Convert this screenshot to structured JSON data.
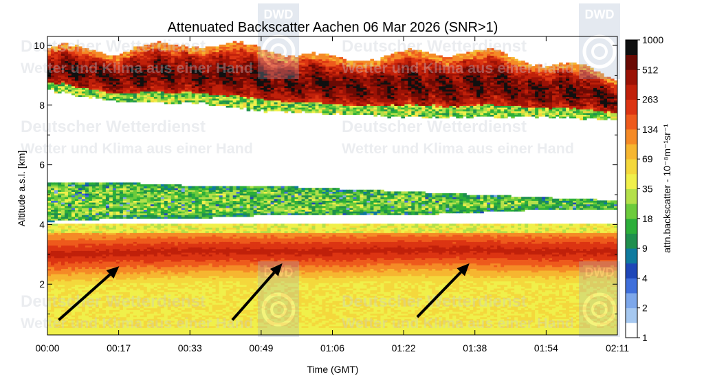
{
  "watermark": {
    "org": "Deutscher Wetterdienst",
    "slogan": "Wetter und Klima aus einer Hand",
    "logo": "DWD",
    "logo_icon": "dwd-spiral-icon"
  },
  "chart_data": {
    "type": "heatmap",
    "title": "Attenuated Backscatter Aachen 06 Mar 2026 (SNR>1)",
    "xlabel": "Time (GMT)",
    "ylabel": "Altitude a.s.l. [km]",
    "x_ticks": [
      "00:00",
      "00:17",
      "00:33",
      "00:49",
      "01:06",
      "01:22",
      "01:38",
      "01:54",
      "02:11"
    ],
    "xlim_minutes": [
      0,
      131
    ],
    "ylim": [
      0.3,
      10.3
    ],
    "y_ticks": [
      2,
      4,
      6,
      8,
      10
    ],
    "colorbar": {
      "label": "attn.backscatter - 10⁻⁸m⁻¹sr⁻¹",
      "ticks": [
        "1",
        "2",
        "4",
        "9",
        "18",
        "35",
        "69",
        "134",
        "263",
        "512",
        "1000"
      ],
      "colors": [
        "#ffffff",
        "#a6c8f0",
        "#7da7ea",
        "#3f6fdb",
        "#1f47b8",
        "#0f7a9e",
        "#1f8f4e",
        "#2cae3a",
        "#6ccb3c",
        "#b4e04a",
        "#f0f04a",
        "#f4d83c",
        "#f6b630",
        "#f58a26",
        "#ee5a1c",
        "#dc3412",
        "#c0200a",
        "#9b1206",
        "#6a0a04",
        "#101010"
      ]
    },
    "layers": [
      {
        "label": "cirrus cloud",
        "base_km": [
          8.5,
          8.1,
          8.1,
          7.8,
          7.7,
          7.6,
          7.6,
          7.6,
          7.5
        ],
        "top_km": [
          9.9,
          9.8,
          10.1,
          9.9,
          9.5,
          9.7,
          9.8,
          9.4,
          9.0
        ]
      },
      {
        "label": "mid-level signal",
        "base_km": [
          4.1,
          4.2,
          4.2,
          4.3,
          4.3,
          4.3,
          4.4,
          4.5,
          4.5
        ],
        "top_km": [
          5.4,
          5.4,
          5.3,
          5.3,
          5.2,
          5.1,
          5.0,
          4.9,
          4.8
        ]
      },
      {
        "label": "aerosol layer peak",
        "altitude_km": [
          3.0,
          3.05,
          3.1,
          3.1,
          3.1,
          3.15,
          3.15,
          3.1,
          3.1
        ]
      },
      {
        "label": "boundary layer",
        "base_km": [
          0.3,
          0.3,
          0.3,
          0.3,
          0.3,
          0.3,
          0.3,
          0.3,
          0.3
        ],
        "top_km": [
          4.0,
          4.0,
          4.0,
          4.0,
          4.0,
          4.0,
          4.0,
          4.0,
          4.0
        ]
      }
    ],
    "annotations": [
      {
        "type": "arrow",
        "from": [
          2.6,
          0.8
        ],
        "to": [
          16.5,
          2.6
        ]
      },
      {
        "type": "arrow",
        "from": [
          42.5,
          0.8
        ],
        "to": [
          54,
          2.7
        ]
      },
      {
        "type": "arrow",
        "from": [
          85,
          0.9
        ],
        "to": [
          97,
          2.7
        ]
      }
    ]
  }
}
